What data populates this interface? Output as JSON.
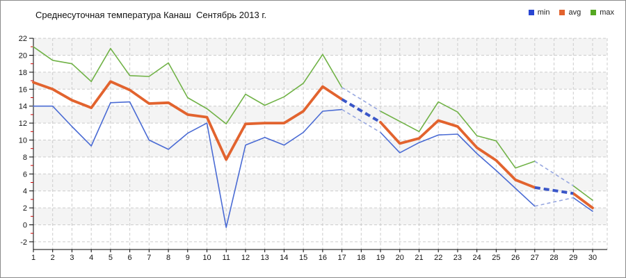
{
  "title": "Среднесуточная температура Канаш  Сентябрь 2013 г.",
  "legend": [
    {
      "label": "min",
      "color": "#2946d2"
    },
    {
      "label": "avg",
      "color": "#e2632e"
    },
    {
      "label": "max",
      "color": "#55a822"
    }
  ],
  "chart_data": {
    "type": "line",
    "title": "Среднесуточная температура Канаш  Сентябрь 2013 г.",
    "xlabel": "",
    "ylabel": "",
    "x": [
      1,
      2,
      3,
      4,
      5,
      6,
      7,
      8,
      9,
      10,
      11,
      12,
      13,
      14,
      15,
      16,
      17,
      18,
      19,
      20,
      21,
      22,
      23,
      24,
      25,
      26,
      27,
      28,
      29,
      30
    ],
    "ylim": [
      -2,
      22
    ],
    "ytick_step": 2,
    "grid": true,
    "legend_position": "top-right",
    "missing_days_bridged_with_dashes": [
      18,
      28
    ],
    "series": [
      {
        "name": "min",
        "color": "#4a6bd4",
        "width": 1.6,
        "values": [
          14.0,
          14.0,
          11.6,
          9.3,
          14.4,
          14.5,
          10.0,
          8.9,
          10.8,
          12.0,
          -0.3,
          9.4,
          10.3,
          9.4,
          10.9,
          13.4,
          13.6,
          null,
          10.9,
          8.5,
          9.7,
          10.6,
          10.7,
          8.4,
          6.4,
          4.3,
          2.2,
          null,
          3.2,
          1.6
        ]
      },
      {
        "name": "avg",
        "color": "#e2632e",
        "width": 3.8,
        "values": [
          16.8,
          16.0,
          14.7,
          13.8,
          16.9,
          15.9,
          14.3,
          14.4,
          13.0,
          12.7,
          7.7,
          11.9,
          12.0,
          12.0,
          13.4,
          16.3,
          14.8,
          null,
          12.1,
          9.6,
          10.2,
          12.3,
          11.6,
          9.1,
          7.6,
          5.3,
          4.4,
          null,
          3.7,
          2.0
        ]
      },
      {
        "name": "max",
        "color": "#70b246",
        "width": 1.6,
        "values": [
          21.0,
          19.4,
          19.0,
          16.9,
          20.8,
          17.6,
          17.5,
          19.1,
          15.0,
          13.7,
          11.9,
          15.4,
          14.1,
          15.1,
          16.7,
          20.1,
          16.2,
          null,
          13.4,
          12.2,
          11.0,
          14.5,
          13.3,
          10.5,
          9.9,
          6.7,
          7.5,
          null,
          4.6,
          2.9
        ]
      }
    ],
    "gap_style": {
      "avg_dash_color": "#3a56c8",
      "minmax_dash_color": "#97a7e0"
    }
  },
  "axes": {
    "y_major_ticks": [
      22,
      20,
      18,
      16,
      14,
      12,
      10,
      8,
      6,
      4,
      2,
      0,
      -2
    ],
    "y_minor_ticks": [
      21,
      19,
      17,
      15,
      13,
      11,
      9,
      7,
      5,
      3,
      1,
      -1
    ],
    "minor_tick_color": "#cc0000",
    "x_ticks": [
      1,
      2,
      3,
      4,
      5,
      6,
      7,
      8,
      9,
      10,
      11,
      12,
      13,
      14,
      15,
      16,
      17,
      18,
      19,
      20,
      21,
      22,
      23,
      24,
      25,
      26,
      27,
      28,
      29,
      30
    ],
    "band_colors": [
      "#f4f4f4",
      "#ffffff"
    ],
    "gridline_color": "#cccccc",
    "axis_color": "#000000"
  }
}
